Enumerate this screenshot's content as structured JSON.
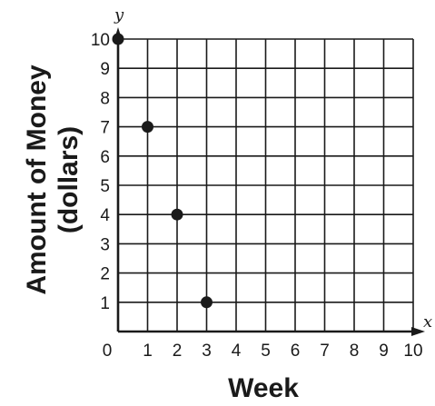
{
  "chart_data": {
    "type": "scatter",
    "xlabel": "Week",
    "ylabel_lines": [
      "Amount of Money",
      "(dollars)"
    ],
    "x_axis_letter": "x",
    "y_axis_letter": "y",
    "xlim": [
      0,
      10
    ],
    "ylim": [
      0,
      10
    ],
    "x_ticks": [
      "0",
      "1",
      "2",
      "3",
      "4",
      "5",
      "6",
      "7",
      "8",
      "9",
      "10"
    ],
    "y_ticks": [
      "1",
      "2",
      "3",
      "4",
      "5",
      "6",
      "7",
      "8",
      "9",
      "10"
    ],
    "grid": true,
    "points": [
      {
        "x": 0,
        "y": 10
      },
      {
        "x": 1,
        "y": 7
      },
      {
        "x": 2,
        "y": 4
      },
      {
        "x": 3,
        "y": 1
      }
    ],
    "colors": {
      "ink": "#1a1a1a",
      "background": "#ffffff"
    }
  }
}
